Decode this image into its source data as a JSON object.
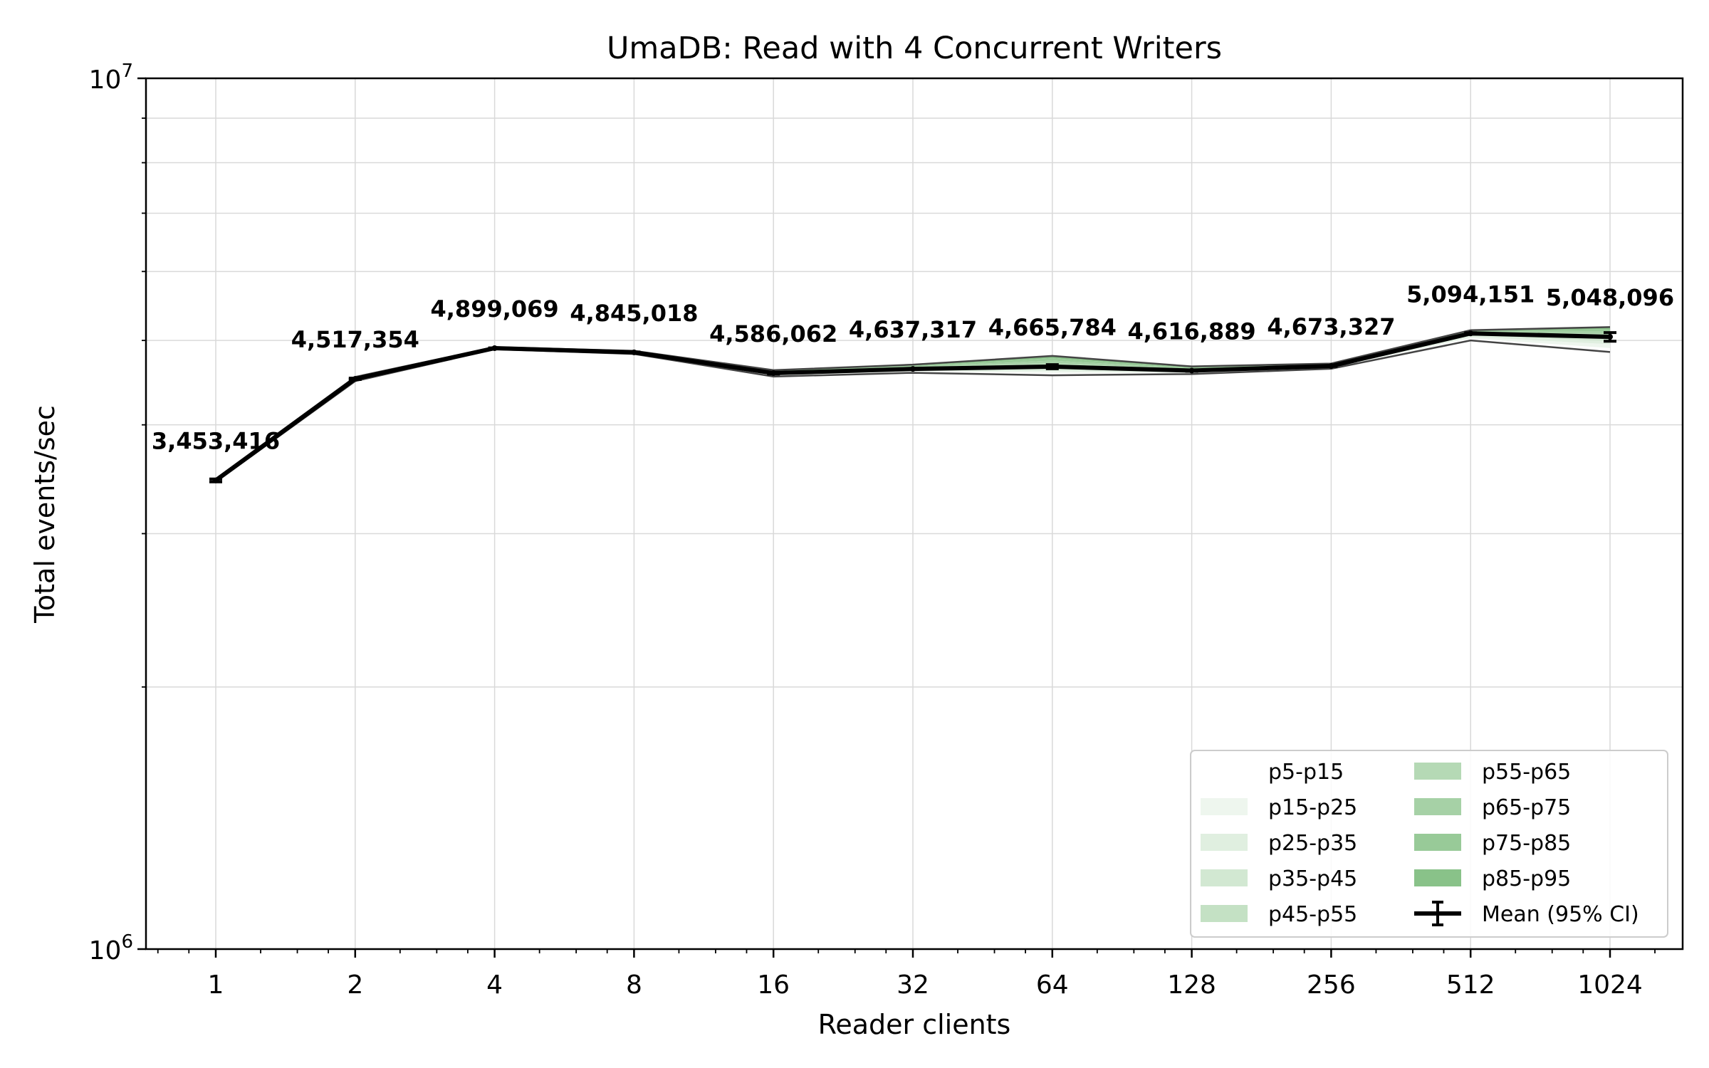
{
  "chart_data": {
    "type": "line",
    "title": "UmaDB: Read with 4 Concurrent Writers",
    "xlabel": "Reader clients",
    "ylabel": "Total events/sec",
    "x_scale": "log2",
    "y_scale": "log10",
    "ylim": [
      1000000,
      10000000
    ],
    "y_tick_labels": [
      "10^6",
      "10^7"
    ],
    "grid": true,
    "legend_position": "lower right",
    "categories": [
      "1",
      "2",
      "4",
      "8",
      "16",
      "32",
      "64",
      "128",
      "256",
      "512",
      "1024"
    ],
    "x": [
      1,
      2,
      4,
      8,
      16,
      32,
      64,
      128,
      256,
      512,
      1024
    ],
    "series": [
      {
        "name": "Mean (95% CI)",
        "values": [
          3453416,
          4517354,
          4899069,
          4845018,
          4586062,
          4637317,
          4665784,
          4616889,
          4673327,
          5094151,
          5048096
        ],
        "ci_low": [
          3440000,
          4510000,
          4895000,
          4840000,
          4575000,
          4632000,
          4640000,
          4608000,
          4668000,
          5085000,
          4990000
        ],
        "ci_high": [
          3466000,
          4525000,
          4903000,
          4850000,
          4597000,
          4642000,
          4690000,
          4626000,
          4678000,
          5103000,
          5105000
        ]
      }
    ],
    "data_labels": [
      "3,453,416",
      "4,517,354",
      "4,899,069",
      "4,845,018",
      "4,586,062",
      "4,637,317",
      "4,665,784",
      "4,616,889",
      "4,673,327",
      "5,094,151",
      "5,048,096"
    ],
    "percentile_bands": [
      {
        "name": "p5-p15",
        "color": "#ffffff",
        "lower": [
          3440000,
          4490000,
          4885000,
          4825000,
          4545000,
          4590000,
          4560000,
          4575000,
          4640000,
          5000000,
          4850000
        ],
        "upper": [
          3445000,
          4500000,
          4890000,
          4832000,
          4558000,
          4605000,
          4590000,
          4588000,
          4650000,
          5030000,
          4900000
        ]
      },
      {
        "name": "p15-p25",
        "color": "#eef6ee",
        "lower": [
          3445000,
          4500000,
          4890000,
          4832000,
          4558000,
          4605000,
          4590000,
          4588000,
          4650000,
          5030000,
          4900000
        ],
        "upper": [
          3448000,
          4505000,
          4893000,
          4836000,
          4566000,
          4615000,
          4610000,
          4596000,
          4656000,
          5050000,
          4950000
        ]
      },
      {
        "name": "p25-p35",
        "color": "#e0efe0",
        "lower": [
          3448000,
          4505000,
          4893000,
          4836000,
          4566000,
          4615000,
          4610000,
          4596000,
          4656000,
          5050000,
          4950000
        ],
        "upper": [
          3451000,
          4510000,
          4896000,
          4840000,
          4574000,
          4622000,
          4630000,
          4604000,
          4662000,
          5065000,
          4990000
        ]
      },
      {
        "name": "p35-p45",
        "color": "#d2e8d2",
        "lower": [
          3451000,
          4510000,
          4896000,
          4840000,
          4574000,
          4622000,
          4630000,
          4604000,
          4662000,
          5065000,
          4990000
        ],
        "upper": [
          3453000,
          4515000,
          4898000,
          4844000,
          4582000,
          4630000,
          4650000,
          4612000,
          4668000,
          5080000,
          5025000
        ]
      },
      {
        "name": "p45-p55",
        "color": "#c4e1c4",
        "lower": [
          3453000,
          4515000,
          4898000,
          4844000,
          4582000,
          4630000,
          4650000,
          4612000,
          4668000,
          5080000,
          5025000
        ],
        "upper": [
          3456000,
          4520000,
          4901000,
          4848000,
          4590000,
          4642000,
          4680000,
          4620000,
          4674000,
          5095000,
          5060000
        ]
      },
      {
        "name": "p55-p65",
        "color": "#b5d9b5",
        "lower": [
          3456000,
          4520000,
          4901000,
          4848000,
          4590000,
          4642000,
          4680000,
          4620000,
          4674000,
          5095000,
          5060000
        ],
        "upper": [
          3459000,
          4525000,
          4904000,
          4852000,
          4598000,
          4654000,
          4710000,
          4630000,
          4680000,
          5108000,
          5090000
        ]
      },
      {
        "name": "p65-p75",
        "color": "#a6d1a6",
        "lower": [
          3459000,
          4525000,
          4904000,
          4852000,
          4598000,
          4654000,
          4710000,
          4630000,
          4680000,
          5108000,
          5090000
        ],
        "upper": [
          3462000,
          4530000,
          4907000,
          4856000,
          4606000,
          4666000,
          4740000,
          4642000,
          4688000,
          5118000,
          5120000
        ]
      },
      {
        "name": "p75-p85",
        "color": "#98ca98",
        "lower": [
          3462000,
          4530000,
          4907000,
          4856000,
          4606000,
          4666000,
          4740000,
          4642000,
          4688000,
          5118000,
          5120000
        ],
        "upper": [
          3465000,
          4535000,
          4910000,
          4860000,
          4614000,
          4678000,
          4770000,
          4655000,
          4696000,
          5128000,
          5150000
        ]
      },
      {
        "name": "p85-p95",
        "color": "#89c289",
        "lower": [
          3465000,
          4535000,
          4910000,
          4860000,
          4614000,
          4678000,
          4770000,
          4655000,
          4696000,
          5128000,
          5150000
        ],
        "upper": [
          3468000,
          4540000,
          4913000,
          4864000,
          4622000,
          4690000,
          4800000,
          4668000,
          4704000,
          5138000,
          5180000
        ]
      }
    ]
  }
}
